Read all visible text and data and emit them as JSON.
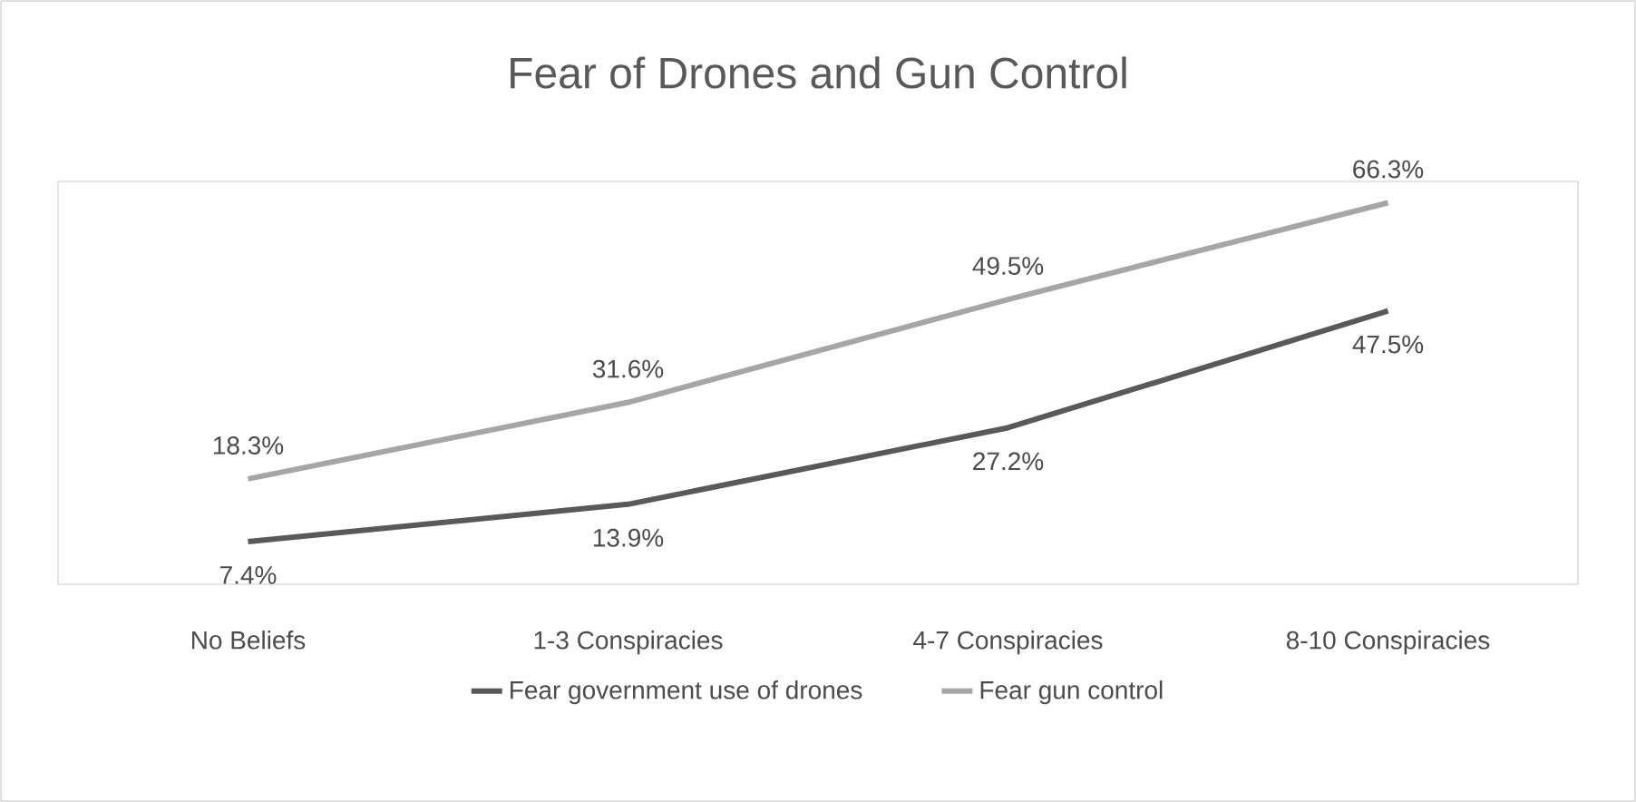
{
  "chart_data": {
    "type": "line",
    "title": "Fear of Drones and Gun Control",
    "categories": [
      "No Beliefs",
      "1-3 Conspiracies",
      "4-7 Conspiracies",
      "8-10 Conspiracies"
    ],
    "series": [
      {
        "name": "Fear government use of drones",
        "color": "#595959",
        "values": [
          7.4,
          13.9,
          27.2,
          47.5
        ],
        "value_labels": [
          "7.4%",
          "13.9%",
          "27.2%",
          "47.5%"
        ]
      },
      {
        "name": "Fear gun control",
        "color": "#a6a6a6",
        "values": [
          18.3,
          31.6,
          49.5,
          66.3
        ],
        "value_labels": [
          "18.3%",
          "31.6%",
          "49.5%",
          "66.3%"
        ]
      }
    ],
    "ylim": [
      0,
      70
    ],
    "tick_labels": "x",
    "legend": "bottom",
    "marker": "none",
    "line_style": "solid"
  }
}
